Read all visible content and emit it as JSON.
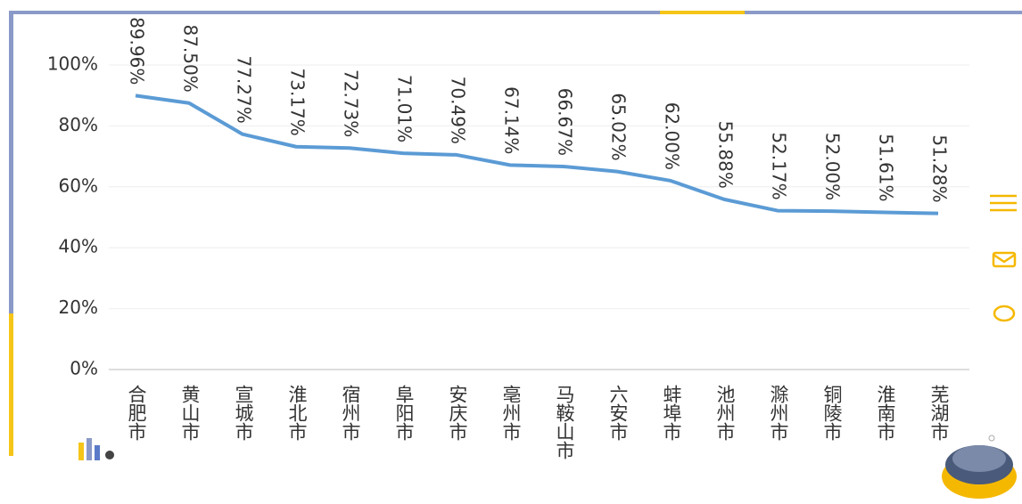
{
  "chart_data": {
    "type": "line",
    "categories": [
      "合肥市",
      "黄山市",
      "宣城市",
      "淮北市",
      "宿州市",
      "阜阳市",
      "安庆市",
      "亳州市",
      "马鞍山市",
      "六安市",
      "蚌埠市",
      "池州市",
      "滁州市",
      "铜陵市",
      "淮南市",
      "芜湖市"
    ],
    "values": [
      89.96,
      87.5,
      77.27,
      73.17,
      72.73,
      71.01,
      70.49,
      67.14,
      66.67,
      65.02,
      62.0,
      55.88,
      52.17,
      52.0,
      51.61,
      51.28
    ],
    "value_labels": [
      "89.96%",
      "87.50%",
      "77.27%",
      "73.17%",
      "72.73%",
      "71.01%",
      "70.49%",
      "67.14%",
      "66.67%",
      "65.02%",
      "62.00%",
      "55.88%",
      "52.17%",
      "52.00%",
      "51.61%",
      "51.28%"
    ],
    "color": "#5b9bd5",
    "ylim": [
      0,
      100
    ],
    "yticks": [
      {
        "value": 0,
        "label": "0%"
      },
      {
        "value": 20,
        "label": "20%"
      },
      {
        "value": 40,
        "label": "40%"
      },
      {
        "value": 60,
        "label": "60%"
      },
      {
        "value": 80,
        "label": "80%"
      },
      {
        "value": 100,
        "label": "100%"
      }
    ],
    "grid": true
  }
}
